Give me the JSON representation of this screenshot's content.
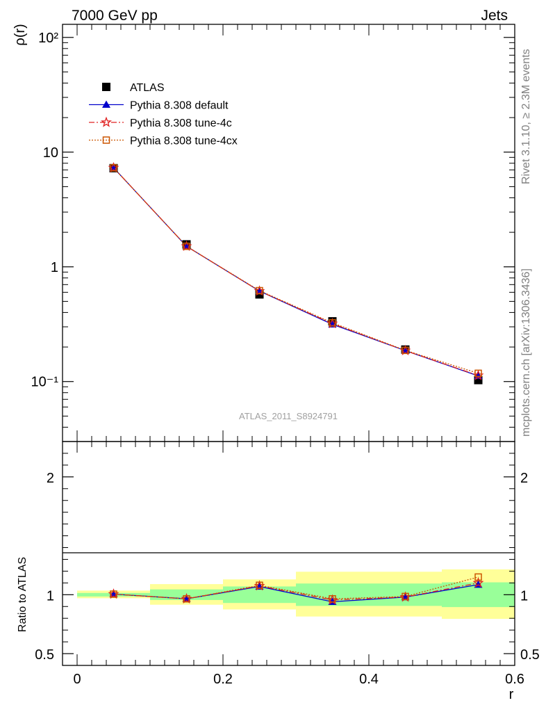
{
  "header": {
    "left": "7000 GeV pp",
    "right": "Jets"
  },
  "side_labels": {
    "rivet": "Rivet 3.1.10, ≥ 2.3M events",
    "mcplots": "mcplots.cern.ch [arXiv:1306.3436]"
  },
  "analysis_label": "ATLAS_2011_S8924791",
  "chart_data": [
    {
      "type": "scatter",
      "panel": "main",
      "ylabel": "ρ(r)",
      "yscale": "log",
      "xlim": [
        -0.02,
        0.6
      ],
      "ylim": [
        0.03,
        130
      ],
      "y_tick_labels": [
        "10⁻¹",
        "1",
        "10",
        "10²"
      ],
      "legend_position": "top-left",
      "x": [
        0.05,
        0.15,
        0.25,
        0.35,
        0.45,
        0.55
      ],
      "series": [
        {
          "name": "ATLAS",
          "values": [
            7.25,
            1.57,
            0.575,
            0.335,
            0.19,
            0.103
          ],
          "color": "#000000",
          "marker": "square",
          "line": "none"
        },
        {
          "name": "Pythia 8.308 default",
          "values": [
            7.3,
            1.51,
            0.615,
            0.315,
            0.186,
            0.112
          ],
          "color": "#0000cc",
          "marker": "triangle",
          "line": "solid"
        },
        {
          "name": "Pythia 8.308 tune-4c",
          "values": [
            7.3,
            1.51,
            0.615,
            0.32,
            0.186,
            0.113
          ],
          "color": "#e02020",
          "marker": "star",
          "line": "dashdot"
        },
        {
          "name": "Pythia 8.308 tune-4cx",
          "values": [
            7.3,
            1.51,
            0.62,
            0.325,
            0.187,
            0.118
          ],
          "color": "#cc5500",
          "marker": "open-square",
          "line": "dotted"
        }
      ]
    },
    {
      "type": "scatter",
      "panel": "ratio",
      "xlabel": "r",
      "ylabel": "Ratio to ATLAS",
      "xlim": [
        -0.02,
        0.6
      ],
      "ylim": [
        0.4,
        2.3
      ],
      "x_tick_labels": [
        "0",
        "0.2",
        "0.4",
        "0.6"
      ],
      "y_tick_labels": [
        "0.5",
        "1",
        "2"
      ],
      "bands": {
        "x_edges": [
          0.0,
          0.1,
          0.2,
          0.3,
          0.4,
          0.5,
          0.6
        ],
        "green_lo": [
          0.985,
          0.955,
          0.93,
          0.905,
          0.905,
          0.895
        ],
        "green_hi": [
          1.015,
          1.045,
          1.07,
          1.095,
          1.095,
          1.105
        ],
        "yellow_lo": [
          0.97,
          0.915,
          0.875,
          0.815,
          0.815,
          0.795
        ],
        "yellow_hi": [
          1.035,
          1.09,
          1.13,
          1.195,
          1.195,
          1.215
        ],
        "green_color": "#99ff99",
        "yellow_color": "#ffff99"
      },
      "x": [
        0.05,
        0.15,
        0.25,
        0.35,
        0.45,
        0.55
      ],
      "series": [
        {
          "name": "Pythia 8.308 default",
          "values": [
            1.005,
            0.965,
            1.07,
            0.94,
            0.98,
            1.085
          ],
          "color": "#0000cc",
          "marker": "triangle",
          "line": "solid"
        },
        {
          "name": "Pythia 8.308 tune-4c",
          "values": [
            1.005,
            0.965,
            1.075,
            0.955,
            0.98,
            1.1
          ],
          "color": "#e02020",
          "marker": "star",
          "line": "dashdot"
        },
        {
          "name": "Pythia 8.308 tune-4cx",
          "values": [
            1.005,
            0.965,
            1.08,
            0.965,
            0.985,
            1.15
          ],
          "color": "#cc5500",
          "marker": "open-square",
          "line": "dotted"
        }
      ]
    }
  ]
}
